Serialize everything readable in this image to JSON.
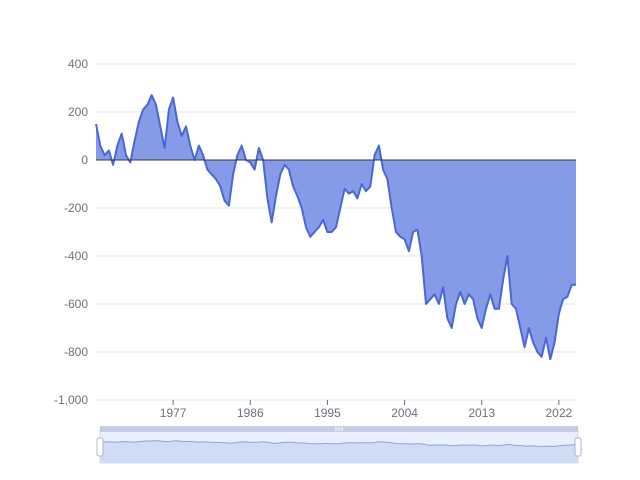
{
  "colors": {
    "series_line": "#4a67d6",
    "series_fill": "#7b93e6",
    "grid": "#e0e6f1",
    "zero_line": "#3a3a3a",
    "slider_bg": "#e9effd",
    "slider_border": "#d2dbee",
    "slider_fill": "#d0dbf6",
    "slider_line": "#8fa3dc"
  },
  "chart_data": {
    "type": "area",
    "title": "",
    "xlabel": "",
    "ylabel": "",
    "xlim": [
      1968,
      2024
    ],
    "ylim": [
      -1000,
      400
    ],
    "y_ticks": [
      400,
      200,
      0,
      -200,
      -400,
      -600,
      -800,
      -1000
    ],
    "y_tick_labels": [
      "400",
      "200",
      "0",
      "-200",
      "-400",
      "-600",
      "-800",
      "-1,000"
    ],
    "x_ticks": [
      1977,
      1986,
      1995,
      2004,
      2013,
      2022
    ],
    "x_tick_labels": [
      "1977",
      "1986",
      "1995",
      "2004",
      "2013",
      "2022"
    ],
    "grid": "horizontal",
    "legend": "none",
    "data_zoom_slider": "full range",
    "x": [
      1968,
      1968.5,
      1969,
      1969.5,
      1970,
      1970.5,
      1971,
      1971.5,
      1972,
      1972.5,
      1973,
      1973.5,
      1974,
      1974.5,
      1975,
      1975.5,
      1976,
      1976.5,
      1977,
      1977.5,
      1978,
      1978.5,
      1979,
      1979.5,
      1980,
      1980.5,
      1981,
      1981.5,
      1982,
      1982.5,
      1983,
      1983.5,
      1984,
      1984.5,
      1985,
      1985.5,
      1986,
      1986.5,
      1987,
      1987.5,
      1988,
      1988.5,
      1989,
      1989.5,
      1990,
      1990.5,
      1991,
      1991.5,
      1992,
      1992.5,
      1993,
      1993.5,
      1994,
      1994.5,
      1995,
      1995.5,
      1996,
      1996.5,
      1997,
      1997.5,
      1998,
      1998.5,
      1999,
      1999.5,
      2000,
      2000.5,
      2001,
      2001.5,
      2002,
      2002.5,
      2003,
      2003.5,
      2004,
      2004.5,
      2005,
      2005.5,
      2006,
      2006.5,
      2007,
      2007.5,
      2008,
      2008.5,
      2009,
      2009.5,
      2010,
      2010.5,
      2011,
      2011.5,
      2012,
      2012.5,
      2013,
      2013.5,
      2014,
      2014.5,
      2015,
      2015.5,
      2016,
      2016.5,
      2017,
      2017.5,
      2018,
      2018.5,
      2019,
      2019.5,
      2020,
      2020.5,
      2021,
      2021.5,
      2022,
      2022.5,
      2023,
      2023.5,
      2024
    ],
    "series": [
      {
        "values": [
          150,
          60,
          20,
          40,
          -20,
          60,
          110,
          20,
          -10,
          80,
          160,
          210,
          230,
          270,
          230,
          140,
          50,
          210,
          260,
          160,
          100,
          140,
          60,
          0,
          60,
          20,
          -40,
          -60,
          -80,
          -110,
          -170,
          -190,
          -60,
          20,
          60,
          0,
          -10,
          -40,
          50,
          0,
          -160,
          -260,
          -150,
          -60,
          -20,
          -40,
          -110,
          -150,
          -200,
          -280,
          -320,
          -300,
          -280,
          -250,
          -300,
          -300,
          -280,
          -200,
          -120,
          -140,
          -130,
          -160,
          -100,
          -130,
          -110,
          20,
          60,
          -40,
          -80,
          -200,
          -300,
          -320,
          -330,
          -380,
          -300,
          -290,
          -400,
          -600,
          -580,
          -560,
          -600,
          -530,
          -660,
          -700,
          -600,
          -550,
          -600,
          -560,
          -580,
          -660,
          -700,
          -620,
          -560,
          -620,
          -620,
          -500,
          -400,
          -600,
          -620,
          -700,
          -780,
          -700,
          -760,
          -800,
          -820,
          -740,
          -830,
          -760,
          -640,
          -580,
          -570,
          -520,
          -520
        ]
      }
    ]
  }
}
